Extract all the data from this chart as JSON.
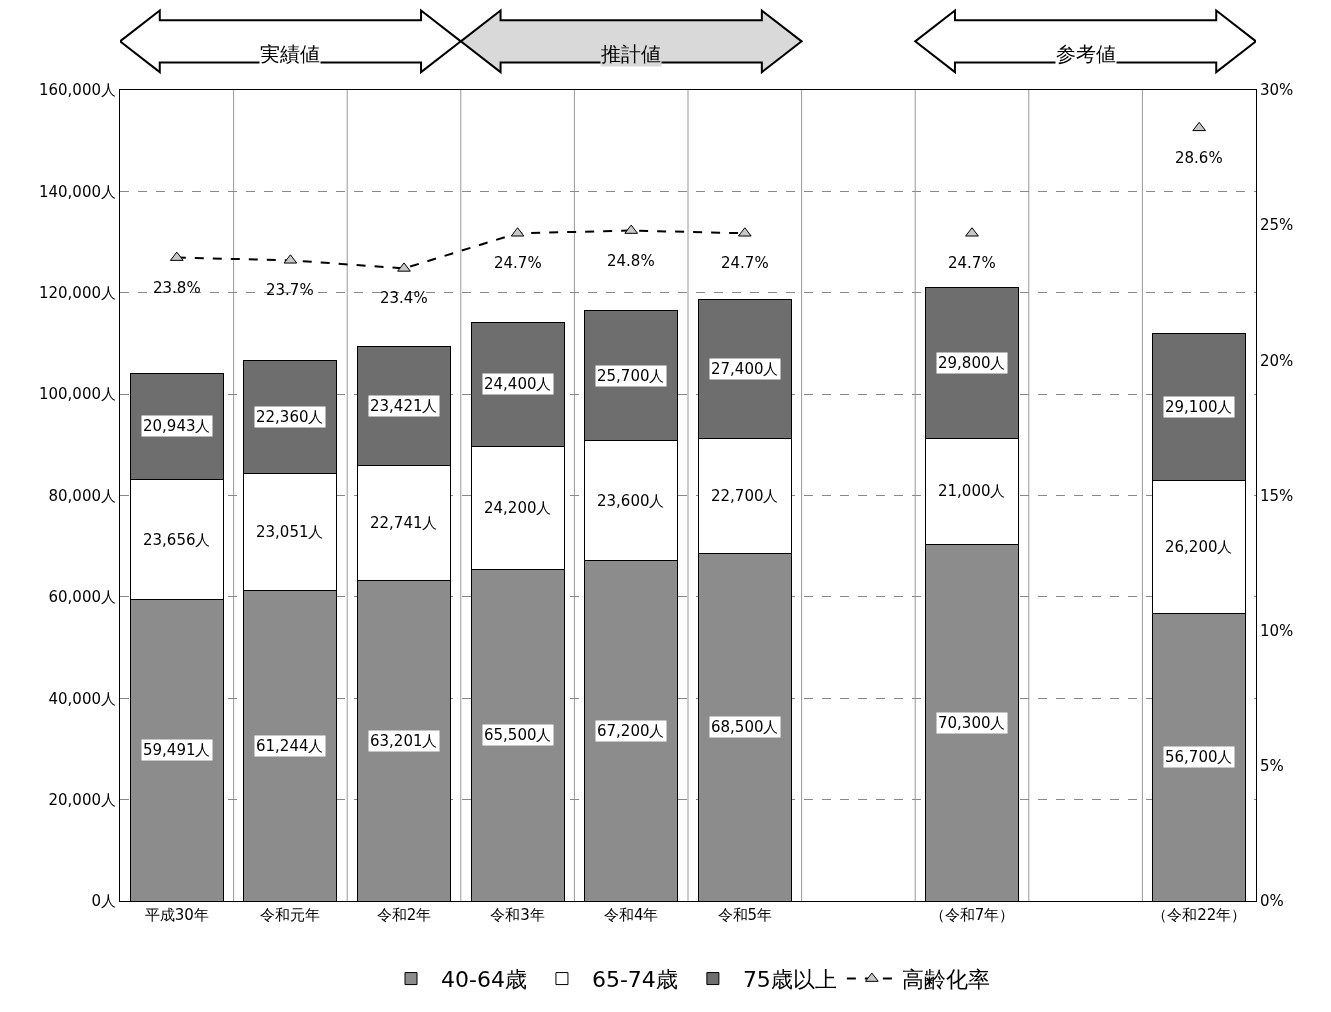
{
  "chart_data": {
    "type": "bar",
    "stacked": true,
    "categories": [
      "平成30年",
      "令和元年",
      "令和2年",
      "令和3年",
      "令和4年",
      "令和5年",
      null,
      "（令和7年）",
      null,
      "（令和22年）"
    ],
    "series": [
      {
        "name": "40-64歳",
        "color": "#8c8c8c",
        "values": [
          59491,
          61244,
          63201,
          65500,
          67200,
          68500,
          null,
          70300,
          null,
          56700
        ],
        "value_labels": [
          "59,491人",
          "61,244人",
          "63,201人",
          "65,500人",
          "67,200人",
          "68,500人",
          null,
          "70,300人",
          null,
          "56,700人"
        ]
      },
      {
        "name": "65-74歳",
        "color": "#ffffff",
        "values": [
          23656,
          23051,
          22741,
          24200,
          23600,
          22700,
          null,
          21000,
          null,
          26200
        ],
        "value_labels": [
          "23,656人",
          "23,051人",
          "22,741人",
          "24,200人",
          "23,600人",
          "22,700人",
          null,
          "21,000人",
          null,
          "26,200人"
        ]
      },
      {
        "name": "75歳以上",
        "color": "#6e6e6e",
        "values": [
          20943,
          22360,
          23421,
          24400,
          25700,
          27400,
          null,
          29800,
          null,
          29100
        ],
        "value_labels": [
          "20,943人",
          "22,360人",
          "23,421人",
          "24,400人",
          "25,700人",
          "27,400人",
          null,
          "29,800人",
          null,
          "29,100人"
        ]
      },
      {
        "name": "高齢化率",
        "type": "line",
        "axis": "y2",
        "color": "#000000",
        "marker": "triangle",
        "line_style": "dashed",
        "values": [
          23.8,
          23.7,
          23.4,
          24.7,
          24.8,
          24.7,
          null,
          24.7,
          null,
          28.6
        ],
        "value_labels": [
          "23.8%",
          "23.7%",
          "23.4%",
          "24.7%",
          "24.8%",
          "24.7%",
          null,
          "24.7%",
          null,
          "28.6%"
        ]
      }
    ],
    "ylim": [
      0,
      160000
    ],
    "yticks": [
      {
        "value": 0,
        "label": "0人"
      },
      {
        "value": 20000,
        "label": "20,000人"
      },
      {
        "value": 40000,
        "label": "40,000人"
      },
      {
        "value": 60000,
        "label": "60,000人"
      },
      {
        "value": 80000,
        "label": "80,000人"
      },
      {
        "value": 100000,
        "label": "100,000人"
      },
      {
        "value": 120000,
        "label": "120,000人"
      },
      {
        "value": 140000,
        "label": "140,000人"
      },
      {
        "value": 160000,
        "label": "160,000人"
      }
    ],
    "y2lim": [
      0,
      30
    ],
    "y2ticks": [
      {
        "value": 0,
        "label": "0%"
      },
      {
        "value": 5,
        "label": "5%"
      },
      {
        "value": 10,
        "label": "10%"
      },
      {
        "value": 15,
        "label": "15%"
      },
      {
        "value": 20,
        "label": "20%"
      },
      {
        "value": 25,
        "label": "25%"
      },
      {
        "value": 30,
        "label": "30%"
      }
    ],
    "annotations": [
      "実績値",
      "推計値",
      "参考値"
    ],
    "grid": true,
    "legend": "bottom"
  }
}
